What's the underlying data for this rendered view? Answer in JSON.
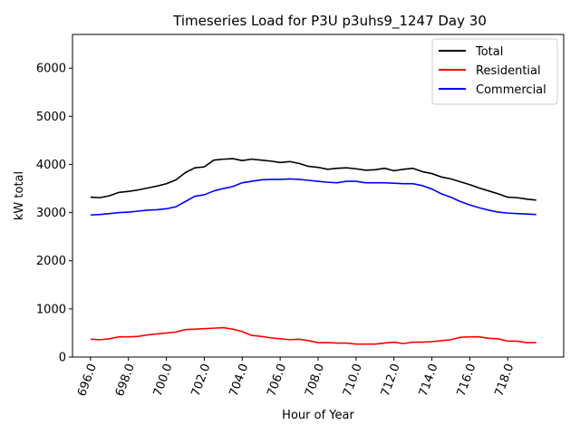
{
  "chart_data": {
    "type": "line",
    "title": "Timeseries Load for P3U p3uhs9_1247  Day 30",
    "xlabel": "Hour of Year",
    "ylabel": "kW total",
    "xlim": [
      695.05,
      720.95
    ],
    "ylim": [
      0,
      6700
    ],
    "xticks": [
      696,
      698,
      700,
      702,
      704,
      706,
      708,
      710,
      712,
      714,
      716,
      718
    ],
    "xtick_labels": [
      "696.0",
      "698.0",
      "700.0",
      "702.0",
      "704.0",
      "706.0",
      "708.0",
      "710.0",
      "712.0",
      "714.0",
      "716.0",
      "718.0"
    ],
    "yticks": [
      0,
      1000,
      2000,
      3000,
      4000,
      5000,
      6000
    ],
    "ytick_labels": [
      "0",
      "1000",
      "2000",
      "3000",
      "4000",
      "5000",
      "6000"
    ],
    "legend_position": "top-right",
    "x": [
      696.0,
      696.5,
      697.0,
      697.5,
      698.0,
      698.5,
      699.0,
      699.5,
      700.0,
      700.5,
      701.0,
      701.5,
      702.0,
      702.5,
      703.0,
      703.5,
      704.0,
      704.5,
      705.0,
      705.5,
      706.0,
      706.5,
      707.0,
      707.5,
      708.0,
      708.5,
      709.0,
      709.5,
      710.0,
      710.5,
      711.0,
      711.5,
      712.0,
      712.5,
      713.0,
      713.5,
      714.0,
      714.5,
      715.0,
      715.5,
      716.0,
      716.5,
      717.0,
      717.5,
      718.0,
      718.5,
      719.0,
      719.5
    ],
    "series": [
      {
        "name": "Total",
        "color": "#000000",
        "values": [
          3320,
          3310,
          3350,
          3420,
          3440,
          3470,
          3510,
          3550,
          3600,
          3680,
          3830,
          3930,
          3950,
          4090,
          4110,
          4120,
          4080,
          4110,
          4090,
          4070,
          4040,
          4060,
          4020,
          3960,
          3940,
          3900,
          3920,
          3930,
          3910,
          3880,
          3890,
          3920,
          3870,
          3900,
          3920,
          3850,
          3810,
          3740,
          3700,
          3640,
          3580,
          3510,
          3450,
          3390,
          3320,
          3310,
          3280,
          3260
        ]
      },
      {
        "name": "Residential",
        "color": "#ff0000",
        "values": [
          370,
          360,
          380,
          420,
          420,
          430,
          460,
          480,
          500,
          520,
          570,
          580,
          590,
          600,
          610,
          580,
          530,
          450,
          430,
          400,
          380,
          360,
          370,
          340,
          300,
          300,
          290,
          290,
          270,
          270,
          270,
          290,
          310,
          280,
          310,
          310,
          320,
          340,
          360,
          410,
          420,
          420,
          390,
          380,
          330,
          330,
          300,
          300
        ]
      },
      {
        "name": "Commercial",
        "color": "#0000ff",
        "values": [
          2950,
          2960,
          2980,
          3000,
          3010,
          3030,
          3050,
          3060,
          3080,
          3120,
          3230,
          3340,
          3370,
          3450,
          3500,
          3540,
          3620,
          3650,
          3680,
          3690,
          3690,
          3700,
          3690,
          3670,
          3650,
          3630,
          3620,
          3650,
          3650,
          3620,
          3620,
          3620,
          3610,
          3600,
          3600,
          3560,
          3490,
          3390,
          3320,
          3230,
          3160,
          3100,
          3050,
          3010,
          2990,
          2980,
          2970,
          2960
        ]
      }
    ]
  }
}
